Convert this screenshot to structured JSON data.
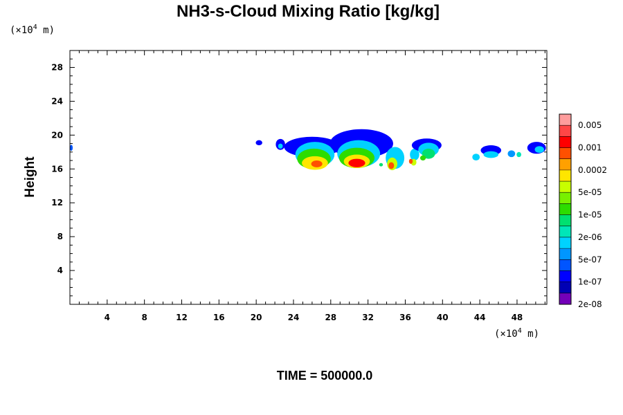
{
  "chart_data": {
    "type": "heatmap",
    "title": "NH3-s-Cloud Mixing Ratio [kg/kg]",
    "xlabel": "",
    "ylabel": "Height",
    "x_unit": {
      "prefix": "(×10",
      "exp": "4",
      "suffix": " m)"
    },
    "y_unit": {
      "prefix": "(×10",
      "exp": "4",
      "suffix": " m)"
    },
    "xlim": [
      0,
      51.2
    ],
    "ylim": [
      0,
      30
    ],
    "x_ticks": [
      "4",
      "8",
      "12",
      "16",
      "20",
      "24",
      "28",
      "32",
      "36",
      "40",
      "44",
      "48"
    ],
    "x_tick_values": [
      4,
      8,
      12,
      16,
      20,
      24,
      28,
      32,
      36,
      40,
      44,
      48
    ],
    "y_ticks": [
      "4",
      "8",
      "12",
      "16",
      "20",
      "24",
      "28"
    ],
    "y_tick_values": [
      4,
      8,
      12,
      16,
      20,
      24,
      28
    ],
    "colorbar": {
      "labels": [
        "0.005",
        "0.001",
        "0.0002",
        "5e-05",
        "1e-05",
        "2e-06",
        "5e-07",
        "1e-07",
        "2e-08"
      ],
      "colors": [
        "#ff9d9d",
        "#ff4646",
        "#ff0000",
        "#ff5000",
        "#ffa000",
        "#ffe600",
        "#c8ff00",
        "#78f000",
        "#2ddc00",
        "#00e070",
        "#00e6b8",
        "#00d2ff",
        "#0096ff",
        "#0055ff",
        "#0000ff",
        "#0000b4",
        "#7300b9"
      ]
    },
    "cloud_blobs": [
      {
        "x": 0.15,
        "y": 18.5,
        "w": 0.3,
        "h": 0.7,
        "level": 13
      },
      {
        "x": 20.3,
        "y": 19.1,
        "w": 0.7,
        "h": 0.6,
        "level": 14
      },
      {
        "x": 22.6,
        "y": 18.9,
        "w": 1.0,
        "h": 1.3,
        "level": 14
      },
      {
        "x": 22.6,
        "y": 18.7,
        "w": 0.5,
        "h": 0.6,
        "level": 11
      },
      {
        "x": 26.0,
        "y": 18.6,
        "w": 6.0,
        "h": 2.4,
        "level": 14
      },
      {
        "x": 26.3,
        "y": 17.7,
        "w": 4.2,
        "h": 3.0,
        "level": 11
      },
      {
        "x": 26.2,
        "y": 17.2,
        "w": 3.6,
        "h": 2.4,
        "level": 8
      },
      {
        "x": 26.3,
        "y": 16.7,
        "w": 2.8,
        "h": 1.6,
        "level": 5
      },
      {
        "x": 26.5,
        "y": 16.6,
        "w": 1.2,
        "h": 0.8,
        "level": 3
      },
      {
        "x": 31.3,
        "y": 19.0,
        "w": 6.8,
        "h": 3.4,
        "level": 14
      },
      {
        "x": 31.0,
        "y": 17.8,
        "w": 4.6,
        "h": 3.2,
        "level": 11
      },
      {
        "x": 30.8,
        "y": 17.3,
        "w": 3.8,
        "h": 2.4,
        "level": 8
      },
      {
        "x": 30.8,
        "y": 16.9,
        "w": 2.8,
        "h": 1.6,
        "level": 5
      },
      {
        "x": 30.8,
        "y": 16.7,
        "w": 1.8,
        "h": 1.0,
        "level": 2
      },
      {
        "x": 34.9,
        "y": 17.3,
        "w": 2.0,
        "h": 2.6,
        "level": 11
      },
      {
        "x": 34.6,
        "y": 16.6,
        "w": 1.1,
        "h": 1.5,
        "level": 6
      },
      {
        "x": 34.5,
        "y": 16.4,
        "w": 0.6,
        "h": 0.8,
        "level": 3
      },
      {
        "x": 33.4,
        "y": 16.5,
        "w": 0.4,
        "h": 0.4,
        "level": 9
      },
      {
        "x": 37.0,
        "y": 17.7,
        "w": 1.0,
        "h": 1.4,
        "level": 11
      },
      {
        "x": 36.9,
        "y": 16.8,
        "w": 0.6,
        "h": 0.8,
        "level": 6
      },
      {
        "x": 36.6,
        "y": 16.9,
        "w": 0.4,
        "h": 0.6,
        "level": 3
      },
      {
        "x": 38.3,
        "y": 18.8,
        "w": 3.2,
        "h": 1.6,
        "level": 14
      },
      {
        "x": 38.5,
        "y": 18.3,
        "w": 2.2,
        "h": 1.6,
        "level": 11
      },
      {
        "x": 38.5,
        "y": 17.8,
        "w": 1.4,
        "h": 1.2,
        "level": 9
      },
      {
        "x": 37.9,
        "y": 17.3,
        "w": 0.6,
        "h": 0.6,
        "level": 8
      },
      {
        "x": 43.6,
        "y": 17.4,
        "w": 0.8,
        "h": 0.8,
        "level": 11
      },
      {
        "x": 45.2,
        "y": 18.2,
        "w": 2.2,
        "h": 1.2,
        "level": 14
      },
      {
        "x": 45.2,
        "y": 17.7,
        "w": 1.6,
        "h": 0.8,
        "level": 11
      },
      {
        "x": 47.4,
        "y": 17.8,
        "w": 0.8,
        "h": 0.8,
        "level": 12
      },
      {
        "x": 48.2,
        "y": 17.7,
        "w": 0.5,
        "h": 0.6,
        "level": 10
      },
      {
        "x": 50.1,
        "y": 18.5,
        "w": 2.0,
        "h": 1.4,
        "level": 14
      },
      {
        "x": 50.4,
        "y": 18.3,
        "w": 1.0,
        "h": 0.8,
        "level": 11
      }
    ]
  },
  "footer": {
    "time_label": "TIME = 500000.0"
  }
}
